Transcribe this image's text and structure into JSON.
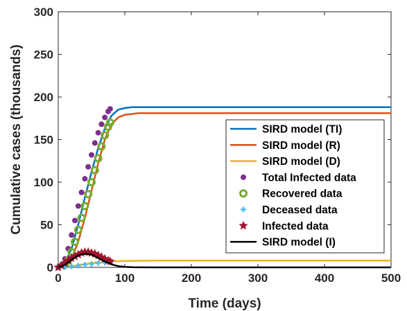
{
  "chart_data": {
    "type": "line",
    "title": "",
    "xlabel": "Time (days)",
    "ylabel": "Cumulative cases (thousands)",
    "xlim": [
      0,
      500
    ],
    "ylim": [
      0,
      300
    ],
    "xticks": [
      0,
      100,
      200,
      300,
      400,
      500
    ],
    "yticks": [
      0,
      50,
      100,
      150,
      200,
      250,
      300
    ],
    "grid": false,
    "legend_position": "right",
    "series": [
      {
        "name": "SIRD model (TI)",
        "kind": "line",
        "color": "#0072BD",
        "x": [
          0,
          10,
          20,
          30,
          40,
          50,
          60,
          70,
          80,
          90,
          100,
          110,
          120,
          140,
          160,
          200,
          300,
          400,
          500
        ],
        "y": [
          0,
          5,
          22,
          50,
          82,
          112,
          140,
          163,
          178,
          185,
          187,
          188,
          188,
          188,
          188,
          188,
          188,
          188,
          188
        ]
      },
      {
        "name": "SIRD model (R)",
        "kind": "line",
        "color": "#D95319",
        "x": [
          0,
          10,
          20,
          30,
          40,
          50,
          60,
          70,
          80,
          90,
          100,
          110,
          120,
          140,
          160,
          200,
          300,
          400,
          500
        ],
        "y": [
          0,
          2,
          10,
          30,
          58,
          90,
          122,
          150,
          168,
          176,
          179,
          180,
          181,
          181,
          181,
          181,
          181,
          181,
          181
        ]
      },
      {
        "name": "SIRD model (D)",
        "kind": "line",
        "color": "#EDB120",
        "x": [
          0,
          20,
          40,
          60,
          80,
          100,
          150,
          200,
          300,
          400,
          500
        ],
        "y": [
          0,
          1.5,
          4,
          6,
          7,
          7.5,
          8,
          8,
          8,
          8,
          8
        ]
      },
      {
        "name": "Total Infected data",
        "kind": "markers",
        "marker": "dot",
        "color": "#7E2F8E",
        "x": [
          0,
          5,
          10,
          15,
          20,
          25,
          30,
          35,
          40,
          45,
          50,
          55,
          60,
          65,
          70,
          75,
          78
        ],
        "y": [
          0,
          3,
          10,
          22,
          38,
          55,
          72,
          88,
          104,
          118,
          132,
          146,
          158,
          168,
          176,
          183,
          186
        ]
      },
      {
        "name": "Recovered data",
        "kind": "markers",
        "marker": "circle",
        "color": "#77AC30",
        "x": [
          10,
          15,
          20,
          25,
          30,
          35,
          40,
          45,
          50,
          55,
          60,
          65,
          70,
          75,
          78
        ],
        "y": [
          3,
          8,
          18,
          30,
          44,
          58,
          72,
          86,
          100,
          114,
          128,
          142,
          155,
          165,
          170
        ]
      },
      {
        "name": "Deceased data",
        "kind": "markers",
        "marker": "plus",
        "color": "#4DBEEE",
        "x": [
          0,
          10,
          20,
          30,
          40,
          50,
          60,
          70,
          78
        ],
        "y": [
          0,
          0.5,
          1,
          2,
          3,
          4,
          5,
          5.5,
          6
        ]
      },
      {
        "name": "Infected data",
        "kind": "markers",
        "marker": "star",
        "color": "#A2142F",
        "x": [
          0,
          5,
          10,
          15,
          20,
          25,
          30,
          35,
          40,
          45,
          50,
          55,
          60,
          65,
          70,
          75,
          78
        ],
        "y": [
          0,
          2,
          5,
          8,
          11,
          13,
          15,
          17,
          18,
          18,
          17,
          16,
          14,
          12,
          10,
          8,
          7
        ]
      },
      {
        "name": "SIRD model (I)",
        "kind": "line",
        "color": "#000000",
        "x": [
          0,
          10,
          20,
          30,
          40,
          50,
          60,
          70,
          80,
          90,
          100,
          110,
          120,
          140,
          160,
          200,
          300,
          400,
          500
        ],
        "y": [
          0,
          3,
          9,
          14,
          16,
          15,
          11,
          7,
          3.5,
          1.5,
          0.6,
          0.2,
          0.1,
          0,
          0,
          0,
          0,
          0,
          0
        ]
      }
    ]
  }
}
